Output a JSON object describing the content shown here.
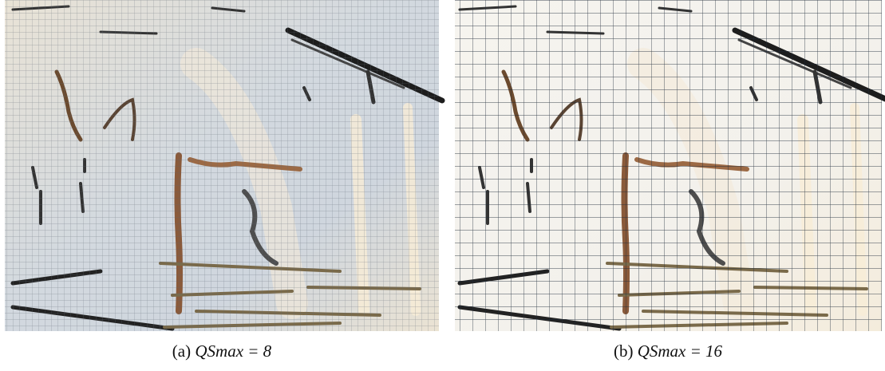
{
  "figure": {
    "panels": [
      {
        "label": "(a)",
        "caption": "QSmax = 8"
      },
      {
        "label": "(b)",
        "caption": "QSmax = 16"
      }
    ]
  }
}
